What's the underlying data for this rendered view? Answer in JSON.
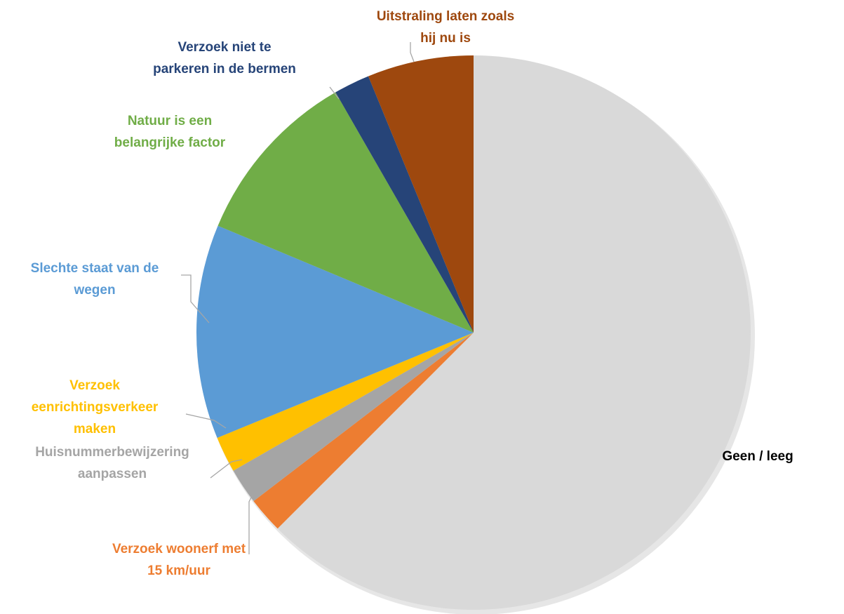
{
  "chart_data": {
    "type": "pie",
    "start_angle_deg": 0,
    "direction": "clockwise",
    "slices": [
      {
        "lines": [
          "Geen / leeg"
        ],
        "value": 62.5,
        "color": "#d9d9d9",
        "label_color": "#000000"
      },
      {
        "lines": [
          "Verzoek woonerf met",
          "15 km/uur"
        ],
        "value": 2.1,
        "color": "#ed7d31",
        "label_color": "#ed7d31"
      },
      {
        "lines": [
          "Huisnummerbewijzering",
          "aanpassen"
        ],
        "value": 2.1,
        "color": "#a5a5a5",
        "label_color": "#a5a5a5"
      },
      {
        "lines": [
          "Verzoek",
          "eenrichtingsverkeer",
          "maken"
        ],
        "value": 2.1,
        "color": "#ffc000",
        "label_color": "#ffc000"
      },
      {
        "lines": [
          "Slechte staat van de",
          "wegen"
        ],
        "value": 12.5,
        "color": "#5b9bd5",
        "label_color": "#5b9bd5"
      },
      {
        "lines": [
          "Natuur is een",
          "belangrijke factor"
        ],
        "value": 10.4,
        "color": "#70ad47",
        "label_color": "#70ad47"
      },
      {
        "lines": [
          "Verzoek niet te",
          "parkeren in de bermen"
        ],
        "value": 2.1,
        "color": "#264478",
        "label_color": "#264478"
      },
      {
        "lines": [
          "Uitstraling laten zoals",
          "hij nu is"
        ],
        "value": 6.2,
        "color": "#9e480e",
        "label_color": "#9e480e"
      }
    ]
  }
}
